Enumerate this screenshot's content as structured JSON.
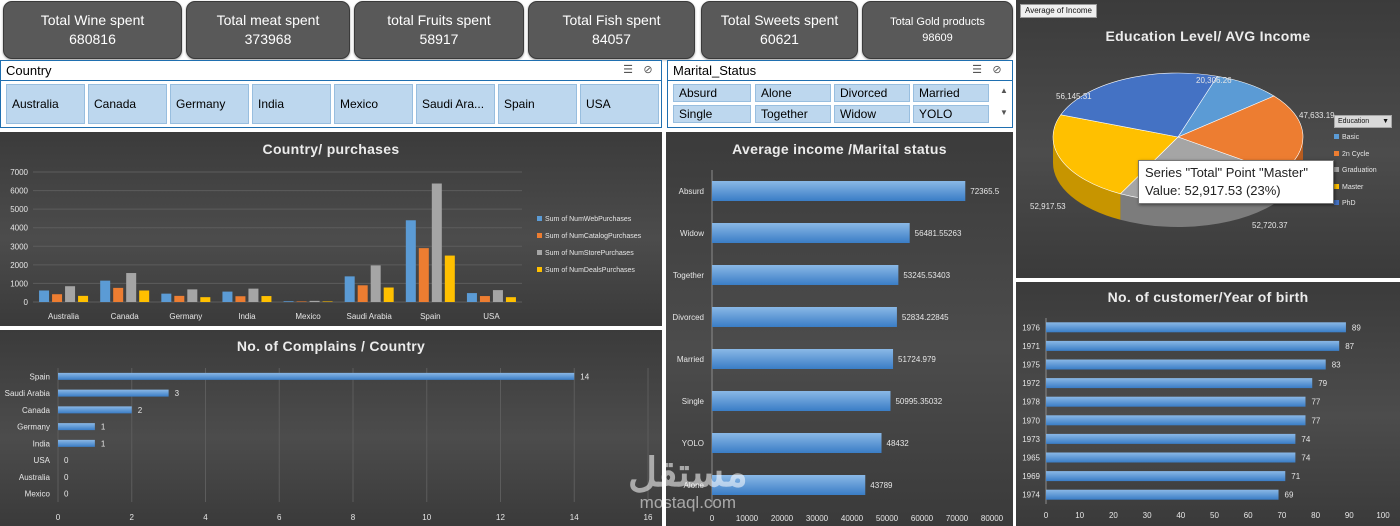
{
  "kpis": [
    {
      "label": "Total Wine spent",
      "value": "680816"
    },
    {
      "label": "Total meat spent",
      "value": "373968"
    },
    {
      "label": "total Fruits spent",
      "value": "58917"
    },
    {
      "label": "Total Fish  spent",
      "value": "84057"
    },
    {
      "label": "Total Sweets spent",
      "value": "60621"
    },
    {
      "label": "Total Gold products",
      "value": "98609"
    }
  ],
  "country_slicer": {
    "title": "Country",
    "items": [
      "Australia",
      "Canada",
      "Germany",
      "India",
      "Mexico",
      "Saudi Ara...",
      "Spain",
      "USA"
    ],
    "icons": [
      "multi-select-icon",
      "clear-filter-icon"
    ]
  },
  "marital_slicer": {
    "title": "Marital_Status",
    "items": [
      "Absurd",
      "Alone",
      "Divorced",
      "Married",
      "Single",
      "Together",
      "Widow",
      "YOLO"
    ],
    "icons": [
      "multi-select-icon",
      "clear-filter-icon",
      "scroll-up-icon",
      "scroll-down-icon"
    ]
  },
  "colors": {
    "blue": "#5b9bd5",
    "orange": "#ed7d31",
    "gray": "#a5a5a5",
    "yellow": "#ffc000",
    "darkblue": "#4472c4"
  },
  "tooltip": {
    "line1": "Series \"Total\" Point \"Master\"",
    "line2": "Value: 52,917.53 (23%)"
  },
  "field_button": "Average of  Income",
  "education_dropdown": {
    "label": "Education",
    "icon": "dropdown-arrow-icon"
  },
  "watermark": {
    "arabic": "مستقل",
    "latin": "mostaql.com"
  },
  "chart_data": [
    {
      "id": "country_purchases",
      "type": "bar",
      "title": "Country/ purchases",
      "categories": [
        "Australia",
        "Canada",
        "Germany",
        "India",
        "Mexico",
        "Saudi Arabia",
        "Spain",
        "USA"
      ],
      "series": [
        {
          "name": "Sum of NumWebPurchases",
          "values": [
            620,
            1150,
            450,
            560,
            40,
            1380,
            4400,
            480
          ]
        },
        {
          "name": "Sum of NumCatalogPurchases",
          "values": [
            420,
            760,
            330,
            310,
            30,
            900,
            2900,
            320
          ]
        },
        {
          "name": "Sum of NumStorePurchases",
          "values": [
            850,
            1560,
            680,
            720,
            60,
            1970,
            6380,
            640
          ]
        },
        {
          "name": "Sum of NumDealsPurchases",
          "values": [
            330,
            620,
            260,
            320,
            30,
            780,
            2500,
            260
          ]
        }
      ],
      "ylim": [
        0,
        7000
      ],
      "yticks": [
        0,
        1000,
        2000,
        3000,
        4000,
        5000,
        6000,
        7000
      ],
      "legend": "right",
      "grid": true
    },
    {
      "id": "complains_country",
      "type": "bar",
      "orientation": "horizontal",
      "title": "No. of Complains / Country",
      "categories": [
        "Spain",
        "Saudi Arabia",
        "Canada",
        "Germany",
        "India",
        "USA",
        "Australia",
        "Mexico"
      ],
      "values": [
        14,
        3,
        2,
        1,
        1,
        0,
        0,
        0
      ],
      "xlim": [
        0,
        16
      ],
      "xticks": [
        0,
        2,
        4,
        6,
        8,
        10,
        12,
        14,
        16
      ],
      "grid": true
    },
    {
      "id": "income_marital",
      "type": "bar",
      "orientation": "horizontal",
      "title": "Average income /Marital status",
      "categories": [
        "Absurd",
        "Widow",
        "Together",
        "Divorced",
        "Married",
        "Single",
        "YOLO",
        "Alone"
      ],
      "values": [
        72365.5,
        56481.55263,
        53245.53403,
        52834.22845,
        51724.979,
        50995.35032,
        48432,
        43789
      ],
      "labels": [
        "72365.5",
        "56481.55263",
        "53245.53403",
        "52834.22845",
        "51724.979",
        "50995.35032",
        "48432",
        "43789"
      ],
      "xlim": [
        0,
        80000
      ],
      "xticks": [
        0,
        10000,
        20000,
        30000,
        40000,
        50000,
        60000,
        70000,
        80000
      ]
    },
    {
      "id": "education_income",
      "type": "pie",
      "title": "Education Level/ AVG Income",
      "categories": [
        "Basic",
        "2n Cycle",
        "Graduation",
        "Master",
        "PhD"
      ],
      "values": [
        20306.26,
        47633.19,
        52720.37,
        52917.53,
        56145.31
      ],
      "labels": [
        "20,306.26",
        "47,633.19",
        "52,720.37",
        "52,917.53",
        "56,145.31"
      ],
      "legend": "right"
    },
    {
      "id": "customers_birth_year",
      "type": "bar",
      "orientation": "horizontal",
      "title": "No. of customer/Year of birth",
      "categories": [
        "1976",
        "1971",
        "1975",
        "1972",
        "1978",
        "1970",
        "1973",
        "1965",
        "1969",
        "1974"
      ],
      "values": [
        89,
        87,
        83,
        79,
        77,
        77,
        74,
        74,
        71,
        69
      ],
      "xlim": [
        0,
        100
      ],
      "xticks": [
        0,
        10,
        20,
        30,
        40,
        50,
        60,
        70,
        80,
        90,
        100
      ]
    }
  ]
}
